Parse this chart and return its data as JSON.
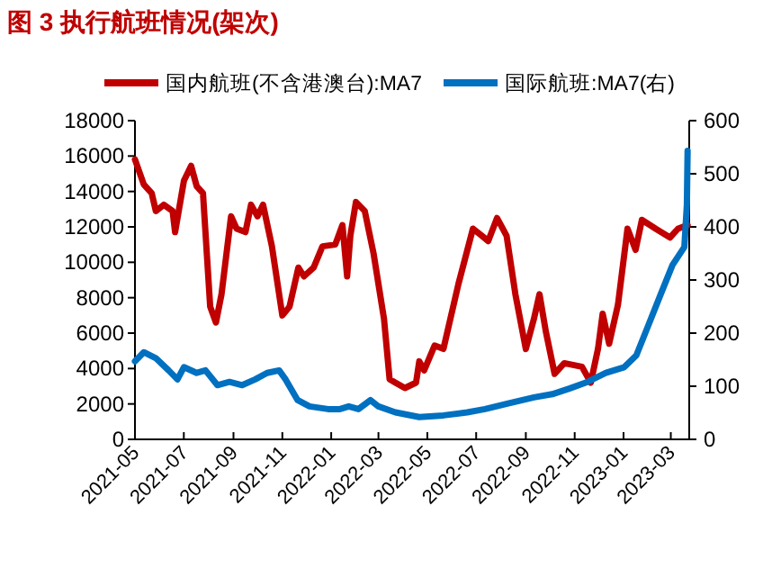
{
  "chart_data": {
    "type": "line",
    "title": "图 3  执行航班情况(架次)",
    "legend": "top",
    "grid": false,
    "xlim": [
      "2021-05-01",
      "2023-03-24"
    ],
    "xticks": [
      "2021-05",
      "2021-07",
      "2021-09",
      "2021-11",
      "2022-01",
      "2022-03",
      "2022-05",
      "2022-07",
      "2022-09",
      "2022-11",
      "2023-01",
      "2023-03"
    ],
    "ylim": [
      0,
      18000
    ],
    "yticks": [
      0,
      2000,
      4000,
      6000,
      8000,
      10000,
      12000,
      14000,
      16000,
      18000
    ],
    "y2lim": [
      0,
      600
    ],
    "y2ticks": [
      0,
      100,
      200,
      300,
      400,
      500,
      600
    ],
    "series": [
      {
        "name": "国内航班(不含港澳台):MA7",
        "color": "#c00000",
        "x": [
          "2021-05-01",
          "2021-05-12",
          "2021-05-22",
          "2021-05-27",
          "2021-06-06",
          "2021-06-17",
          "2021-06-20",
          "2021-07-01",
          "2021-07-10",
          "2021-07-17",
          "2021-07-25",
          "2021-08-03",
          "2021-08-10",
          "2021-08-17",
          "2021-08-29",
          "2021-09-05",
          "2021-09-16",
          "2021-09-23",
          "2021-10-01",
          "2021-10-08",
          "2021-10-19",
          "2021-11-01",
          "2021-11-10",
          "2021-11-21",
          "2021-11-28",
          "2021-12-10",
          "2021-12-21",
          "2022-01-06",
          "2022-01-15",
          "2022-01-21",
          "2022-01-25",
          "2022-02-01",
          "2022-02-12",
          "2022-02-23",
          "2022-03-08",
          "2022-03-15",
          "2022-03-22",
          "2022-04-03",
          "2022-04-17",
          "2022-04-21",
          "2022-04-27",
          "2022-05-10",
          "2022-05-21",
          "2022-06-09",
          "2022-06-27",
          "2022-07-08",
          "2022-07-16",
          "2022-07-27",
          "2022-08-08",
          "2022-08-19",
          "2022-09-01",
          "2022-09-11",
          "2022-09-18",
          "2022-09-26",
          "2022-10-07",
          "2022-10-19",
          "2022-11-10",
          "2022-11-21",
          "2022-11-30",
          "2022-12-06",
          "2022-12-14",
          "2022-12-25",
          "2023-01-06",
          "2023-01-16",
          "2023-01-24",
          "2023-02-10",
          "2023-02-28",
          "2023-03-10",
          "2023-03-22"
        ],
        "values": [
          15800,
          14400,
          13900,
          12900,
          13250,
          12900,
          11700,
          14600,
          15450,
          14300,
          13900,
          7500,
          6600,
          8200,
          12600,
          11900,
          11700,
          13250,
          12600,
          13250,
          10900,
          7000,
          7500,
          9700,
          9200,
          9700,
          10900,
          11000,
          12100,
          9200,
          11500,
          13400,
          12900,
          10500,
          6800,
          3400,
          3200,
          2900,
          3200,
          4400,
          3900,
          5300,
          5100,
          8800,
          11900,
          11500,
          11200,
          12500,
          11500,
          8200,
          5100,
          6800,
          8200,
          6100,
          3700,
          4300,
          4100,
          3200,
          5100,
          7100,
          5400,
          7600,
          11900,
          10700,
          12400,
          11900,
          11400,
          11900,
          12100
        ]
      },
      {
        "name": "国际航班:MA7(右)",
        "color": "#0070c0",
        "axis": "y2",
        "x": [
          "2021-05-01",
          "2021-05-12",
          "2021-05-27",
          "2021-06-12",
          "2021-06-23",
          "2021-07-01",
          "2021-07-17",
          "2021-07-28",
          "2021-08-12",
          "2021-08-27",
          "2021-09-12",
          "2021-09-28",
          "2021-10-13",
          "2021-10-28",
          "2021-11-05",
          "2021-11-20",
          "2021-12-05",
          "2021-12-28",
          "2022-01-12",
          "2022-01-23",
          "2022-02-04",
          "2022-02-19",
          "2022-03-01",
          "2022-03-22",
          "2022-04-21",
          "2022-05-21",
          "2022-06-20",
          "2022-07-12",
          "2022-08-11",
          "2022-09-11",
          "2022-10-04",
          "2022-10-26",
          "2022-11-17",
          "2022-12-10",
          "2023-01-02",
          "2023-01-17",
          "2023-02-01",
          "2023-02-16",
          "2023-03-03",
          "2023-03-18",
          "2023-03-21",
          "2023-03-22"
        ],
        "values": [
          147,
          164,
          153,
          130,
          113,
          136,
          125,
          130,
          102,
          108,
          102,
          113,
          125,
          130,
          113,
          74,
          62,
          57,
          57,
          62,
          57,
          74,
          62,
          51,
          42,
          45,
          51,
          57,
          68,
          79,
          85,
          96,
          108,
          125,
          136,
          158,
          215,
          272,
          328,
          362,
          442,
          543
        ]
      }
    ]
  }
}
